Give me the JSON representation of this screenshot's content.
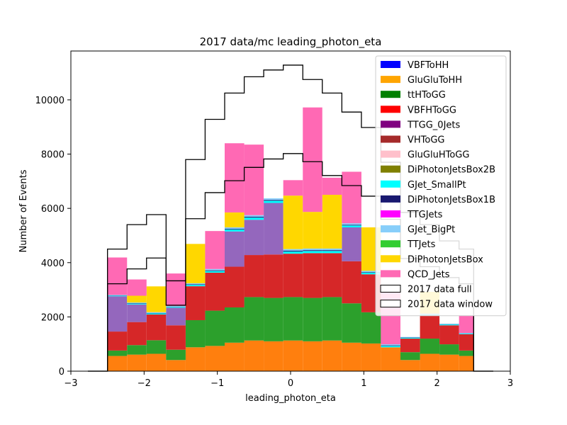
{
  "chart_data": {
    "type": "bar",
    "subtype": "stacked-step-histogram",
    "title": "2017 data/mc leading_photon_eta",
    "xlabel": "leading_photon_eta",
    "ylabel": "Number of Events",
    "xlim": [
      -3.0,
      3.0
    ],
    "ylim": [
      0,
      11800
    ],
    "xticks": [
      -3,
      -2,
      -1,
      0,
      1,
      2,
      3
    ],
    "yticks": [
      0,
      2000,
      4000,
      6000,
      8000,
      10000
    ],
    "legend_position": "upper-right",
    "bins": [
      -2.5,
      -2.233,
      -1.967,
      -1.7,
      -1.433,
      -1.167,
      -0.9,
      -0.633,
      -0.367,
      -0.1,
      0.167,
      0.433,
      0.7,
      0.967,
      1.233,
      1.5,
      1.767,
      2.033,
      2.3,
      2.5
    ],
    "stacked_series": [
      {
        "name": "VBFToHH",
        "color": "#0000ff",
        "values": [
          0,
          0,
          0,
          0,
          0,
          0,
          0,
          0,
          0,
          0,
          0,
          0,
          0,
          0,
          0,
          0,
          0,
          0,
          0
        ]
      },
      {
        "name": "GluGluToHH",
        "color": "#ffa500",
        "values": [
          0,
          0,
          0,
          0,
          0,
          0,
          0,
          0,
          0,
          0,
          0,
          0,
          0,
          0,
          0,
          0,
          0,
          0,
          0
        ]
      },
      {
        "name": "ttHToGG",
        "color": "#008000",
        "values": [
          0,
          0,
          0,
          0,
          0,
          0,
          0,
          0,
          0,
          0,
          0,
          0,
          0,
          0,
          0,
          0,
          0,
          0,
          0
        ]
      },
      {
        "name": "VBFHToGG",
        "color": "#ff0000",
        "values": [
          0,
          0,
          0,
          0,
          0,
          0,
          0,
          0,
          0,
          0,
          0,
          0,
          0,
          0,
          0,
          0,
          0,
          0,
          0
        ]
      },
      {
        "name": "TTGG_0Jets",
        "color": "#800080",
        "values": [
          0,
          0,
          0,
          0,
          0,
          0,
          0,
          0,
          0,
          0,
          0,
          0,
          0,
          0,
          0,
          0,
          0,
          0,
          0
        ]
      },
      {
        "name": "VHToGG",
        "color": "#a52a2a",
        "values": [
          0,
          0,
          0,
          0,
          0,
          0,
          0,
          0,
          0,
          0,
          0,
          0,
          0,
          0,
          0,
          0,
          0,
          0,
          0
        ]
      },
      {
        "name": "GluGluHToGG",
        "color": "#ffc0cb",
        "values": [
          0,
          0,
          0,
          0,
          0,
          0,
          0,
          0,
          0,
          0,
          0,
          0,
          0,
          0,
          0,
          0,
          0,
          0,
          0
        ]
      },
      {
        "name": "DiPhotonJetsBox2B",
        "color": "#808000",
        "values": [
          0,
          0,
          0,
          0,
          0,
          0,
          0,
          0,
          0,
          0,
          0,
          0,
          0,
          0,
          0,
          0,
          0,
          0,
          0
        ]
      },
      {
        "name": "GJet_SmallPt",
        "color": "#00ffff",
        "values": [
          20,
          30,
          40,
          30,
          50,
          60,
          70,
          80,
          80,
          80,
          80,
          80,
          70,
          60,
          50,
          30,
          40,
          30,
          20
        ]
      },
      {
        "name": "DiPhotonJetsBox1B",
        "color": "#191970",
        "values": [
          10,
          15,
          15,
          10,
          20,
          25,
          25,
          30,
          30,
          30,
          30,
          30,
          25,
          20,
          20,
          10,
          10,
          10,
          10
        ]
      },
      {
        "name": "TTGJets",
        "color": "#ff00ff",
        "values": [
          0,
          0,
          0,
          0,
          0,
          0,
          0,
          0,
          0,
          0,
          0,
          0,
          0,
          0,
          0,
          0,
          0,
          0,
          0
        ]
      },
      {
        "name": "GJet_BigPt",
        "color": "#87cefa",
        "values": [
          20,
          25,
          30,
          20,
          40,
          50,
          55,
          60,
          60,
          60,
          60,
          60,
          55,
          50,
          40,
          20,
          25,
          20,
          20
        ]
      },
      {
        "name": "TTJets",
        "color": "#32cd32",
        "values": [
          0,
          0,
          0,
          0,
          0,
          0,
          0,
          0,
          0,
          0,
          0,
          0,
          0,
          0,
          0,
          0,
          0,
          0,
          0
        ]
      },
      {
        "name": "DiPhotonJetsBox",
        "color": "#ffd700",
        "values": [
          0,
          250,
          950,
          0,
          1450,
          0,
          550,
          0,
          0,
          1970,
          1350,
          1980,
          0,
          1600,
          0,
          0,
          800,
          0,
          0
        ]
      },
      {
        "name": "QCD_Jets",
        "color": "#ff69b4",
        "values": [
          1380,
          600,
          0,
          1200,
          0,
          1400,
          2550,
          2600,
          0,
          570,
          3850,
          630,
          1900,
          0,
          2050,
          0,
          0,
          0,
          650
        ]
      }
    ],
    "stack_colors_drawn": [
      "#ff7f0e",
      "#2ca02c",
      "#d62728",
      "#9467bd"
    ],
    "stack_layers_unlabeled": [
      [
        560,
        610,
        640,
        410,
        880,
        930,
        1050,
        1130,
        1100,
        1130,
        1100,
        1130,
        1050,
        1020,
        880,
        410,
        640,
        610,
        560
      ],
      [
        200,
        350,
        500,
        380,
        1000,
        1300,
        1300,
        1600,
        1600,
        1600,
        1600,
        1600,
        1450,
        1150,
        0,
        290,
        560,
        380,
        200
      ],
      [
        700,
        850,
        950,
        900,
        1250,
        1400,
        1500,
        1550,
        1600,
        1600,
        1650,
        1620,
        1550,
        1400,
        0,
        500,
        850,
        700,
        600
      ],
      [
        1300,
        650,
        0,
        650,
        0,
        0,
        1300,
        1300,
        1900,
        0,
        0,
        0,
        1250,
        0,
        0,
        0,
        0,
        0,
        0
      ]
    ],
    "data_series": [
      {
        "name": "2017 data full",
        "edge_color": "#000000",
        "values": [
          4500,
          5400,
          5770,
          3330,
          7800,
          9280,
          10250,
          10850,
          11100,
          11280,
          10750,
          10250,
          9550,
          8980,
          7700,
          5850,
          5400,
          4800,
          4500
        ]
      },
      {
        "name": "2017 data window",
        "edge_color": "#000000",
        "values": [
          3220,
          3770,
          4170,
          2430,
          5620,
          6580,
          7020,
          7510,
          7820,
          8020,
          7720,
          7210,
          6840,
          6450,
          5600,
          4150,
          3850,
          3450,
          3220
        ]
      }
    ],
    "outer_bins": {
      "left": [
        -2.767,
        -2.5
      ],
      "right": [
        2.5,
        2.767
      ],
      "value": 0
    }
  }
}
